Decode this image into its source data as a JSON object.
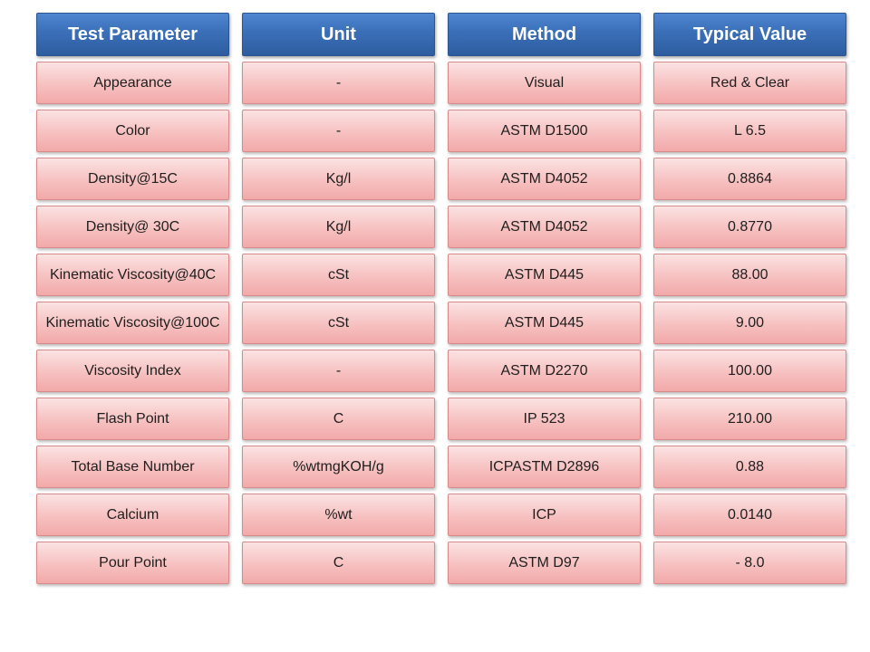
{
  "headers": [
    "Test Parameter",
    "Unit",
    "Method",
    "Typical Value"
  ],
  "rows": [
    [
      "Appearance",
      "-",
      "Visual",
      "Red & Clear"
    ],
    [
      "Color",
      "-",
      "ASTM D1500",
      "L 6.5"
    ],
    [
      "Density@15C",
      "Kg/l",
      "ASTM D4052",
      "0.8864"
    ],
    [
      "Density@ 30C",
      "Kg/l",
      "ASTM D4052",
      "0.8770"
    ],
    [
      "Kinematic Viscosity@40C",
      "cSt",
      "ASTM D445",
      "88.00"
    ],
    [
      "Kinematic Viscosity@100C",
      "cSt",
      "ASTM D445",
      "9.00"
    ],
    [
      "Viscosity Index",
      "-",
      "ASTM D2270",
      "100.00"
    ],
    [
      "Flash Point",
      "C",
      "IP 523",
      "210.00"
    ],
    [
      "Total Base Number",
      "%wtmgKOH/g",
      "ICPASTM D2896",
      "0.88"
    ],
    [
      "Calcium",
      "%wt",
      "ICP",
      "0.0140"
    ],
    [
      "Pour Point",
      "C",
      "ASTM D97",
      "- 8.0"
    ]
  ],
  "colors": {
    "header_blue": "#3a6fb8",
    "cell_pink": "#f7c3c3"
  }
}
